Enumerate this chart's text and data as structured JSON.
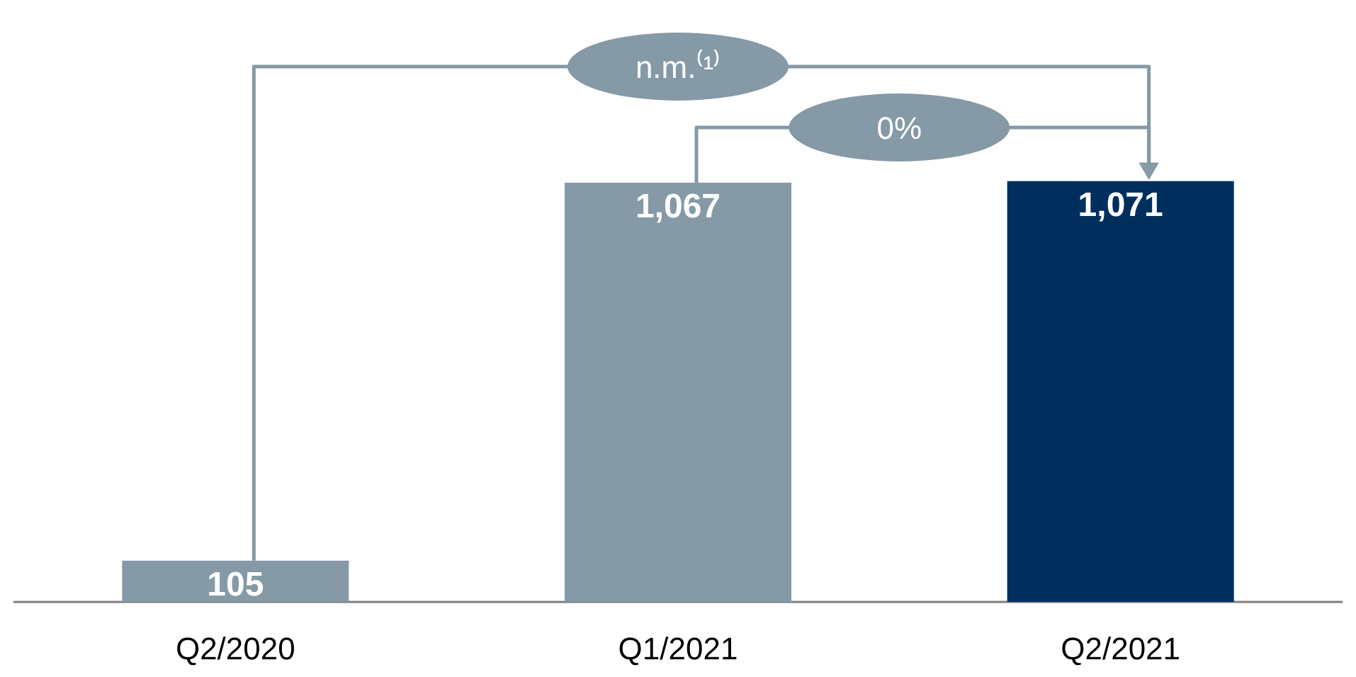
{
  "chart_data": {
    "type": "bar",
    "categories": [
      "Q2/2020",
      "Q1/2021",
      "Q2/2021"
    ],
    "values": [
      105,
      1067,
      1071
    ],
    "value_labels": [
      "105",
      "1,067",
      "1,071"
    ],
    "colors": [
      "#8599a6",
      "#8599a6",
      "#002f5e"
    ],
    "grid": false,
    "annotations": [
      "n.m.⁽¹⁾",
      "0%"
    ]
  }
}
